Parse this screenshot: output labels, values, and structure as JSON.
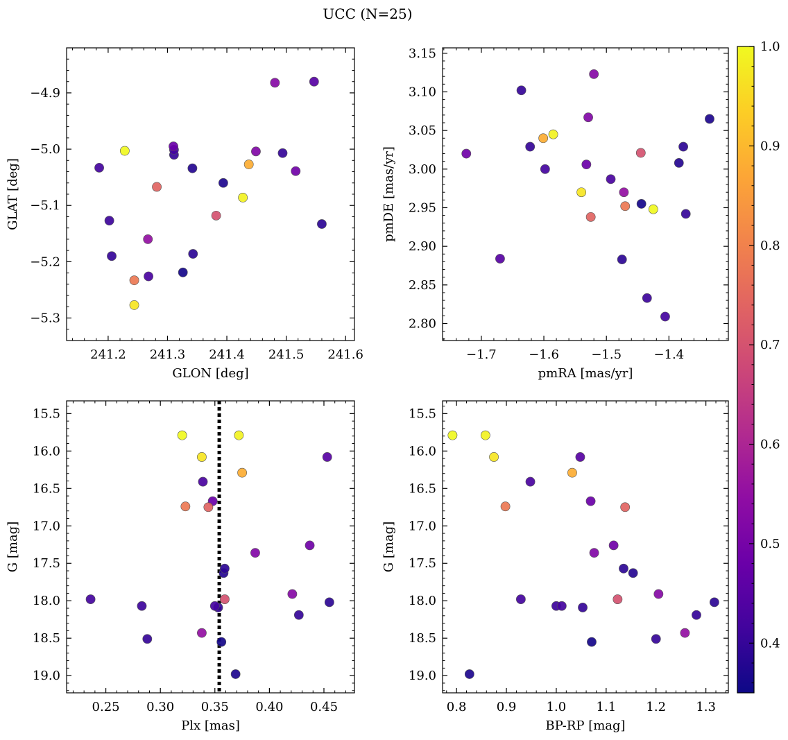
{
  "figure": {
    "title": "UCC (N=25)"
  },
  "colormap": {
    "name": "plasma",
    "range": [
      0.35,
      1.0
    ],
    "ticks": [
      "0.4",
      "0.5",
      "0.6",
      "0.7",
      "0.8",
      "0.9",
      "1.0"
    ]
  },
  "members": {
    "glon": [
      241.185,
      241.202,
      241.206,
      241.228,
      241.244,
      241.244,
      241.267,
      241.268,
      241.282,
      241.31,
      241.311,
      241.311,
      241.326,
      241.342,
      241.343,
      241.382,
      241.394,
      241.427,
      241.437,
      241.449,
      241.481,
      241.494,
      241.516,
      241.547,
      241.56
    ],
    "glat": [
      -5.033,
      -5.127,
      -5.19,
      -5.003,
      -5.233,
      -5.277,
      -5.16,
      -5.226,
      -5.067,
      -4.995,
      -5.001,
      -5.01,
      -5.219,
      -5.034,
      -5.186,
      -5.118,
      -5.06,
      -5.086,
      -5.027,
      -5.004,
      -4.882,
      -5.007,
      -5.039,
      -4.88,
      -5.133
    ],
    "pmra": [
      -1.406,
      -1.435,
      -1.373,
      -1.425,
      -1.47,
      -1.54,
      -1.472,
      -1.493,
      -1.525,
      -1.532,
      -1.598,
      -1.622,
      -1.444,
      -1.384,
      -1.377,
      -1.445,
      -1.335,
      -1.585,
      -1.601,
      -1.529,
      -1.52,
      -1.636,
      -1.724,
      -1.67,
      -1.475
    ],
    "pmde": [
      2.809,
      2.833,
      2.942,
      2.948,
      2.952,
      2.97,
      2.97,
      2.987,
      2.938,
      3.006,
      3.0,
      3.029,
      2.955,
      3.008,
      3.029,
      3.021,
      3.065,
      3.045,
      3.04,
      3.067,
      3.123,
      3.102,
      3.02,
      2.884,
      2.883
    ],
    "plx": [
      0.236,
      0.283,
      0.288,
      0.32,
      0.323,
      0.338,
      0.338,
      0.339,
      0.344,
      0.348,
      0.35,
      0.353,
      0.356,
      0.358,
      0.359,
      0.359,
      0.369,
      0.372,
      0.375,
      0.387,
      0.421,
      0.427,
      0.437,
      0.453,
      0.455
    ],
    "bp_rp": [
      0.929,
      1.0,
      1.2,
      0.792,
      0.898,
      0.875,
      1.258,
      0.948,
      1.138,
      1.069,
      1.011,
      1.053,
      1.071,
      1.154,
      1.135,
      1.123,
      0.826,
      0.858,
      1.032,
      1.076,
      1.205,
      1.281,
      1.115,
      1.048,
      1.317
    ],
    "g": [
      17.98,
      18.07,
      18.51,
      15.79,
      16.74,
      16.08,
      18.43,
      16.41,
      16.75,
      16.67,
      18.07,
      18.09,
      18.55,
      17.63,
      17.57,
      17.98,
      18.98,
      15.79,
      16.29,
      17.36,
      17.91,
      18.19,
      17.26,
      16.08,
      18.02
    ],
    "prob": [
      0.42,
      0.41,
      0.4,
      1.0,
      0.78,
      0.97,
      0.55,
      0.43,
      0.74,
      0.48,
      0.42,
      0.4,
      0.36,
      0.38,
      0.39,
      0.7,
      0.37,
      0.99,
      0.88,
      0.52,
      0.53,
      0.4,
      0.49,
      0.45,
      0.39
    ]
  },
  "chart_data": [
    {
      "type": "scatter",
      "xlabel": "GLON [deg]",
      "ylabel": "GLAT [deg]",
      "xlim": [
        241.13,
        241.615
      ],
      "ylim": [
        -5.34,
        -4.82
      ],
      "xticks": [
        241.2,
        241.3,
        241.4,
        241.5,
        241.6
      ],
      "xtick_labels": [
        "241.2",
        "241.3",
        "241.4",
        "241.5",
        "241.6"
      ],
      "yticks": [
        -5.3,
        -5.2,
        -5.1,
        -5.0,
        -4.9
      ],
      "ytick_labels": [
        "−5.3",
        "−5.2",
        "−5.1",
        "−5.0",
        "−4.9"
      ],
      "x_field": "glon",
      "y_field": "glat",
      "color_field": "prob"
    },
    {
      "type": "scatter",
      "xlabel": "pmRA [mas/yr]",
      "ylabel": "pmDE [mas/yr]",
      "xlim": [
        -1.762,
        -1.305
      ],
      "ylim": [
        2.778,
        3.157
      ],
      "xticks": [
        -1.7,
        -1.6,
        -1.5,
        -1.4
      ],
      "xtick_labels": [
        "−1.7",
        "−1.6",
        "−1.5",
        "−1.4"
      ],
      "yticks": [
        2.8,
        2.85,
        2.9,
        2.95,
        3.0,
        3.05,
        3.1,
        3.15
      ],
      "ytick_labels": [
        "2.80",
        "2.85",
        "2.90",
        "2.95",
        "3.00",
        "3.05",
        "3.10",
        "3.15"
      ],
      "x_field": "pmra",
      "y_field": "pmde",
      "color_field": "prob"
    },
    {
      "type": "scatter",
      "xlabel": "Plx [mas]",
      "ylabel": "G [mag]",
      "xlim": [
        0.214,
        0.478
      ],
      "ylim": [
        19.23,
        15.33
      ],
      "y_inverted": true,
      "xticks": [
        0.25,
        0.3,
        0.35,
        0.4,
        0.45
      ],
      "xtick_labels": [
        "0.25",
        "0.30",
        "0.35",
        "0.40",
        "0.45"
      ],
      "yticks": [
        15.5,
        16.0,
        16.5,
        17.0,
        17.5,
        18.0,
        18.5,
        19.0
      ],
      "ytick_labels": [
        "15.5",
        "16.0",
        "16.5",
        "17.0",
        "17.5",
        "18.0",
        "18.5",
        "19.0"
      ],
      "x_field": "plx",
      "y_field": "g",
      "color_field": "prob",
      "vline": 0.354
    },
    {
      "type": "scatter",
      "xlabel": "BP-RP [mag]",
      "ylabel": "G [mag]",
      "xlim": [
        0.772,
        1.345
      ],
      "ylim": [
        19.23,
        15.33
      ],
      "y_inverted": true,
      "xticks": [
        0.8,
        0.9,
        1.0,
        1.1,
        1.2,
        1.3
      ],
      "xtick_labels": [
        "0.8",
        "0.9",
        "1.0",
        "1.1",
        "1.2",
        "1.3"
      ],
      "yticks": [
        15.5,
        16.0,
        16.5,
        17.0,
        17.5,
        18.0,
        18.5,
        19.0
      ],
      "ytick_labels": [
        "15.5",
        "16.0",
        "16.5",
        "17.0",
        "17.5",
        "18.0",
        "18.5",
        "19.0"
      ],
      "x_field": "bp_rp",
      "y_field": "g",
      "color_field": "prob"
    }
  ]
}
